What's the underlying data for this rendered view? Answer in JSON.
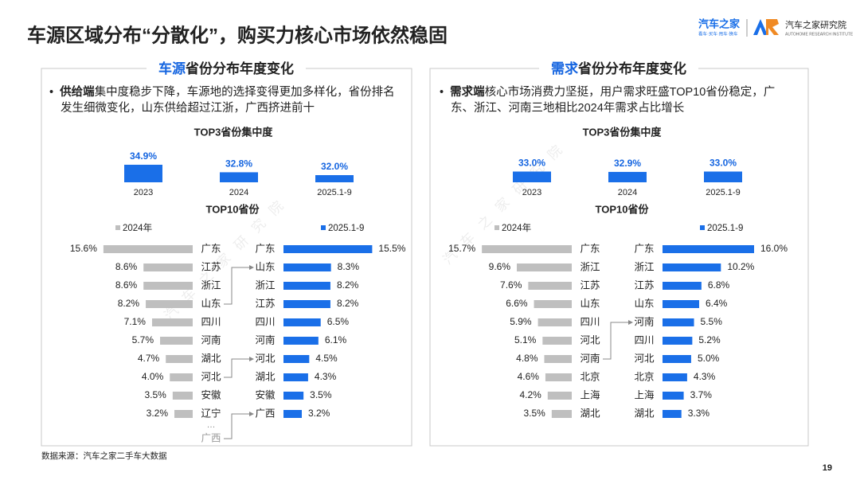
{
  "header": {
    "title": "车源区域分布“分散化”，购买力核心市场依然稳固",
    "brand": "汽车之家",
    "slogan": "看车·买车·用车·换车",
    "institute": "汽车之家研究院",
    "institute_en": "AUTOHOME RESEARCH INSTITUTE"
  },
  "panels": [
    {
      "title_highlight": "车源",
      "title_rest": "省份分布年度变化",
      "bullet_bold": "供给端",
      "bullet_text": "集中度稳步下降，车源地的选择变得更加多样化，省份排名发生细微变化，山东供给超过江浙，广西挤进前十"
    },
    {
      "title_highlight": "需求",
      "title_rest": "省份分布年度变化",
      "bullet_bold": "需求端",
      "bullet_text": "核心市场消费力坚挺，用户需求旺盛TOP10省份稳定，广东、浙江、河南三地相比2024年需求占比增长"
    }
  ],
  "chart_data": [
    {
      "type": "bar",
      "title": "TOP3省份集中度",
      "categories": [
        "2023",
        "2024",
        "2025.1-9"
      ],
      "values": [
        34.9,
        32.8,
        32.0
      ],
      "value_labels": [
        "34.9%",
        "32.8%",
        "32.0%"
      ],
      "color": "#1a6fe8",
      "ylim": [
        30,
        35
      ]
    },
    {
      "type": "butterfly",
      "title": "TOP10省份",
      "xlim": [
        0,
        16
      ],
      "series": [
        {
          "name": "2024年",
          "color": "#bfbfbf",
          "categories": [
            "广东",
            "江苏",
            "浙江",
            "山东",
            "四川",
            "河南",
            "湖北",
            "河北",
            "安徽",
            "辽宁"
          ],
          "values": [
            15.6,
            8.6,
            8.6,
            8.2,
            7.1,
            5.7,
            4.7,
            4.0,
            3.5,
            3.2
          ],
          "value_labels": [
            "15.6%",
            "8.6%",
            "8.6%",
            "8.2%",
            "7.1%",
            "5.7%",
            "4.7%",
            "4.0%",
            "3.5%",
            "3.2%"
          ],
          "ellipsis": "…",
          "extra_category": "广西"
        },
        {
          "name": "2025.1-9",
          "color": "#1a6fe8",
          "categories": [
            "广东",
            "山东",
            "浙江",
            "江苏",
            "四川",
            "河南",
            "河北",
            "湖北",
            "安徽",
            "广西"
          ],
          "values": [
            15.5,
            8.3,
            8.2,
            8.2,
            6.5,
            6.1,
            4.5,
            4.3,
            3.5,
            3.2
          ],
          "value_labels": [
            "15.5%",
            "8.3%",
            "8.2%",
            "8.2%",
            "6.5%",
            "6.1%",
            "4.5%",
            "4.3%",
            "3.5%",
            "3.2%"
          ]
        }
      ]
    },
    {
      "type": "bar",
      "title": "TOP3省份集中度",
      "categories": [
        "2023",
        "2024",
        "2025.1-9"
      ],
      "values": [
        33.0,
        32.9,
        33.0
      ],
      "value_labels": [
        "33.0%",
        "32.9%",
        "33.0%"
      ],
      "color": "#1a6fe8",
      "ylim": [
        30,
        35
      ]
    },
    {
      "type": "butterfly",
      "title": "TOP10省份",
      "xlim": [
        0,
        16
      ],
      "series": [
        {
          "name": "2024年",
          "color": "#bfbfbf",
          "categories": [
            "广东",
            "浙江",
            "江苏",
            "山东",
            "四川",
            "河北",
            "河南",
            "北京",
            "上海",
            "湖北"
          ],
          "values": [
            15.7,
            9.6,
            7.6,
            6.6,
            5.9,
            5.1,
            4.8,
            4.6,
            4.2,
            3.5
          ],
          "value_labels": [
            "15.7%",
            "9.6%",
            "7.6%",
            "6.6%",
            "5.9%",
            "5.1%",
            "4.8%",
            "4.6%",
            "4.2%",
            "3.5%"
          ]
        },
        {
          "name": "2025.1-9",
          "color": "#1a6fe8",
          "categories": [
            "广东",
            "浙江",
            "江苏",
            "山东",
            "河南",
            "四川",
            "河北",
            "北京",
            "上海",
            "湖北"
          ],
          "values": [
            16.0,
            10.2,
            6.8,
            6.4,
            5.5,
            5.2,
            5.0,
            4.3,
            3.7,
            3.3
          ],
          "value_labels": [
            "16.0%",
            "10.2%",
            "6.8%",
            "6.4%",
            "5.5%",
            "5.2%",
            "5.0%",
            "4.3%",
            "3.7%",
            "3.3%"
          ]
        }
      ]
    }
  ],
  "footer": {
    "source": "数据来源：汽车之家二手车大数据",
    "page": "19"
  },
  "watermark": "汽车之家研究院"
}
